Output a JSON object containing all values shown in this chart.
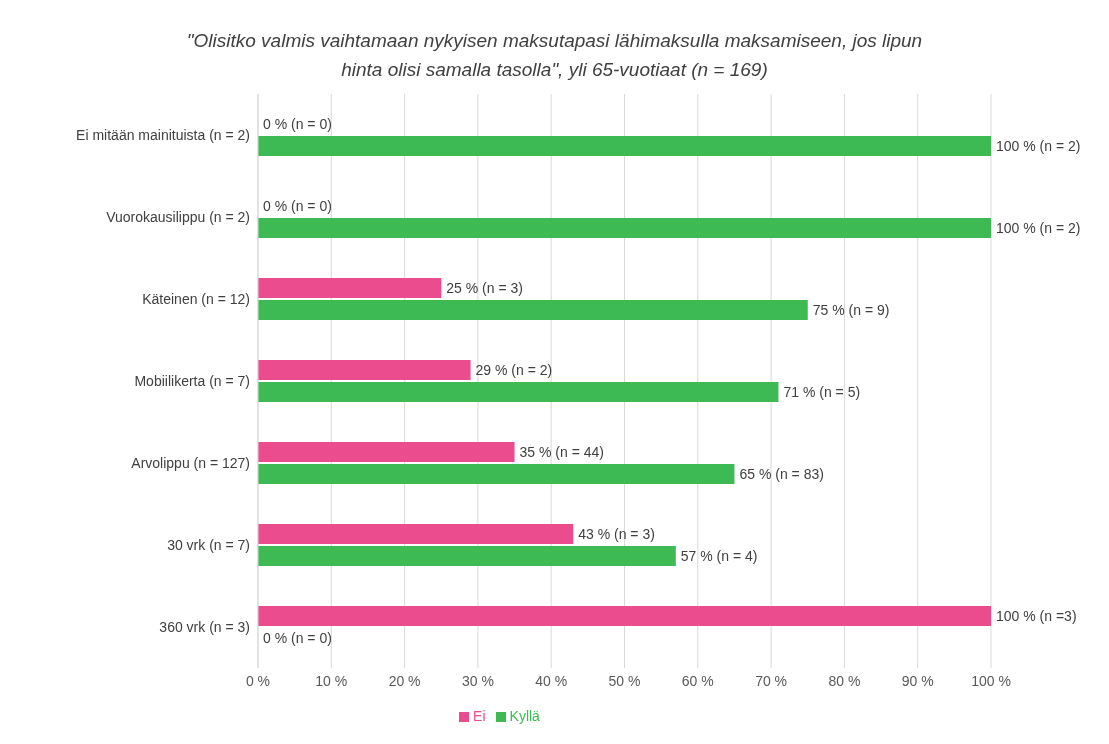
{
  "chart_data": {
    "type": "bar",
    "orientation": "horizontal",
    "title": "\"Olisitko valmis vaihtamaan nykyisen maksutapasi lähimaksulla maksamiseen, jos lipun hinta olisi samalla tasolla\", yli 65-vuotiaat (n = 169)",
    "categories": [
      "Ei mitään mainituista (n = 2)",
      "Vuorokausilippu (n = 2)",
      "Käteinen (n = 12)",
      "Mobiilikerta (n = 7)",
      "Arvolippu (n = 127)",
      "30 vrk (n = 7)",
      "360 vrk (n = 3)"
    ],
    "series": [
      {
        "name": "Ei",
        "color": "#ea4c8e",
        "values": [
          0,
          0,
          25,
          29,
          35,
          43,
          100
        ],
        "value_labels": [
          "0 % (n = 0)",
          "0 % (n = 0)",
          "25 % (n = 3)",
          "29 % (n = 2)",
          "35 % (n = 44)",
          "43 % (n = 3)",
          "100 % (n =3)"
        ]
      },
      {
        "name": "Kyllä",
        "color": "#3dba54",
        "values": [
          100,
          100,
          75,
          71,
          65,
          57,
          0
        ],
        "value_labels": [
          "100 % (n = 2)",
          "100 % (n = 2)",
          "75 % (n = 9)",
          "71 % (n = 5)",
          "65 % (n = 83)",
          "57 % (n = 4)",
          "0 % (n = 0)"
        ]
      }
    ],
    "xlim": [
      0,
      100
    ],
    "xticks": [
      {
        "value": 0,
        "label": "0 %"
      },
      {
        "value": 10,
        "label": "10 %"
      },
      {
        "value": 20,
        "label": "20 %"
      },
      {
        "value": 30,
        "label": "30 %"
      },
      {
        "value": 40,
        "label": "40 %"
      },
      {
        "value": 50,
        "label": "50 %"
      },
      {
        "value": 60,
        "label": "60 %"
      },
      {
        "value": 70,
        "label": "70 %"
      },
      {
        "value": 80,
        "label": "80 %"
      },
      {
        "value": 90,
        "label": "90 %"
      },
      {
        "value": 100,
        "label": "100 %"
      }
    ],
    "grid": "x",
    "legend": "bottom"
  }
}
